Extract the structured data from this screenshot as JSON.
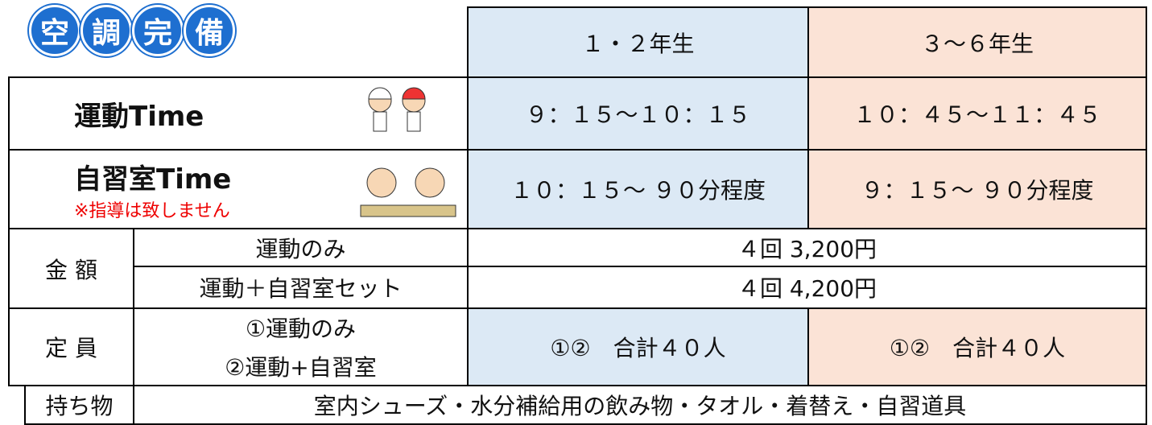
{
  "badge": [
    "空",
    "調",
    "完",
    "備"
  ],
  "header": {
    "grade_a": "１・２年生",
    "grade_b": "３～６年生"
  },
  "rows": [
    {
      "label": "運動Time",
      "a": "９：１５～１０：１５",
      "b": "１０：４５～１１：４５"
    },
    {
      "label": "自習室Time",
      "note": "※指導は致しません",
      "a": "１０：１５～ ９０分程度",
      "b": "９：１５～ ９０分程度"
    }
  ],
  "price": {
    "label": "金 額",
    "items": [
      {
        "name": "運動のみ",
        "value": "４回 3,200円"
      },
      {
        "name": "運動＋自習室セット",
        "value": "４回 4,200円"
      }
    ]
  },
  "capacity": {
    "label": "定 員",
    "options": [
      "①運動のみ",
      "②運動+自習室"
    ],
    "a": "①②　合計４０人",
    "b": "①②　合計４０人"
  },
  "items": {
    "label": "持ち物",
    "value": "室内シューズ・水分補給用の飲み物・タオル・着替え・自習道具"
  }
}
